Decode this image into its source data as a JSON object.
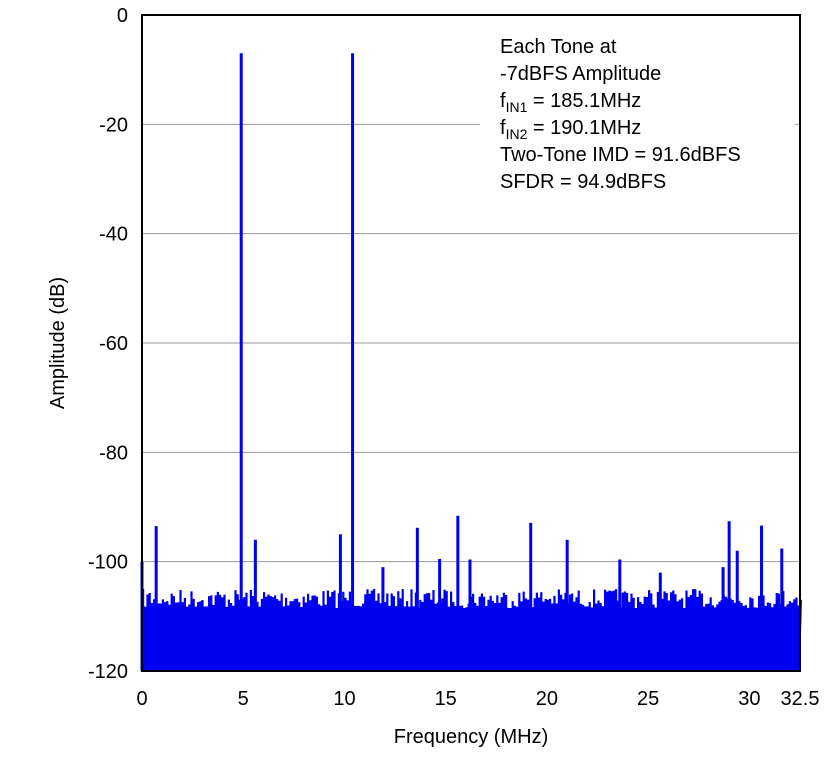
{
  "chart_data": {
    "type": "line",
    "title": "",
    "xlabel": "Frequency (MHz)",
    "ylabel": "Amplitude (dB)",
    "xlim": [
      0,
      32.5
    ],
    "ylim": [
      -120,
      0
    ],
    "xticks": [
      "0",
      "5",
      "10",
      "15",
      "20",
      "25",
      "30",
      "32.5"
    ],
    "xtick_values": [
      0,
      5,
      10,
      15,
      20,
      25,
      30,
      32.5
    ],
    "yticks": [
      "0",
      "-20",
      "-40",
      "-60",
      "-80",
      "-100",
      "-120"
    ],
    "ytick_values": [
      0,
      -20,
      -40,
      -60,
      -80,
      -100,
      -120
    ],
    "grid": "horizontal",
    "color": "#0000F0",
    "noise_floor_db": [
      -120,
      -104
    ],
    "peaks": [
      {
        "x": 0.0,
        "y": -100
      },
      {
        "x": 0.7,
        "y": -93.5
      },
      {
        "x": 4.9,
        "y": -7
      },
      {
        "x": 5.6,
        "y": -96
      },
      {
        "x": 9.8,
        "y": -95
      },
      {
        "x": 10.4,
        "y": -7
      },
      {
        "x": 11.9,
        "y": -101
      },
      {
        "x": 13.6,
        "y": -93.8
      },
      {
        "x": 14.7,
        "y": -99.5
      },
      {
        "x": 15.6,
        "y": -91.6
      },
      {
        "x": 16.2,
        "y": -99.6
      },
      {
        "x": 19.2,
        "y": -92.9
      },
      {
        "x": 21.0,
        "y": -96
      },
      {
        "x": 23.6,
        "y": -99.6
      },
      {
        "x": 25.6,
        "y": -102
      },
      {
        "x": 28.7,
        "y": -101
      },
      {
        "x": 29.0,
        "y": -92.6
      },
      {
        "x": 29.4,
        "y": -98
      },
      {
        "x": 30.6,
        "y": -93.4
      },
      {
        "x": 31.6,
        "y": -97.6
      }
    ],
    "annotation": {
      "line1": "Each Tone at",
      "line2": "-7dBFS Amplitude",
      "fin1_f": "f",
      "fin1_sub": "IN1",
      "fin1_val": " = 185.1MHz",
      "fin2_f": "f",
      "fin2_sub": "IN2",
      "fin2_val": " = 190.1MHz",
      "line5": "Two-Tone IMD = 91.6dBFS",
      "line6": "SFDR = 94.9dBFS"
    }
  }
}
